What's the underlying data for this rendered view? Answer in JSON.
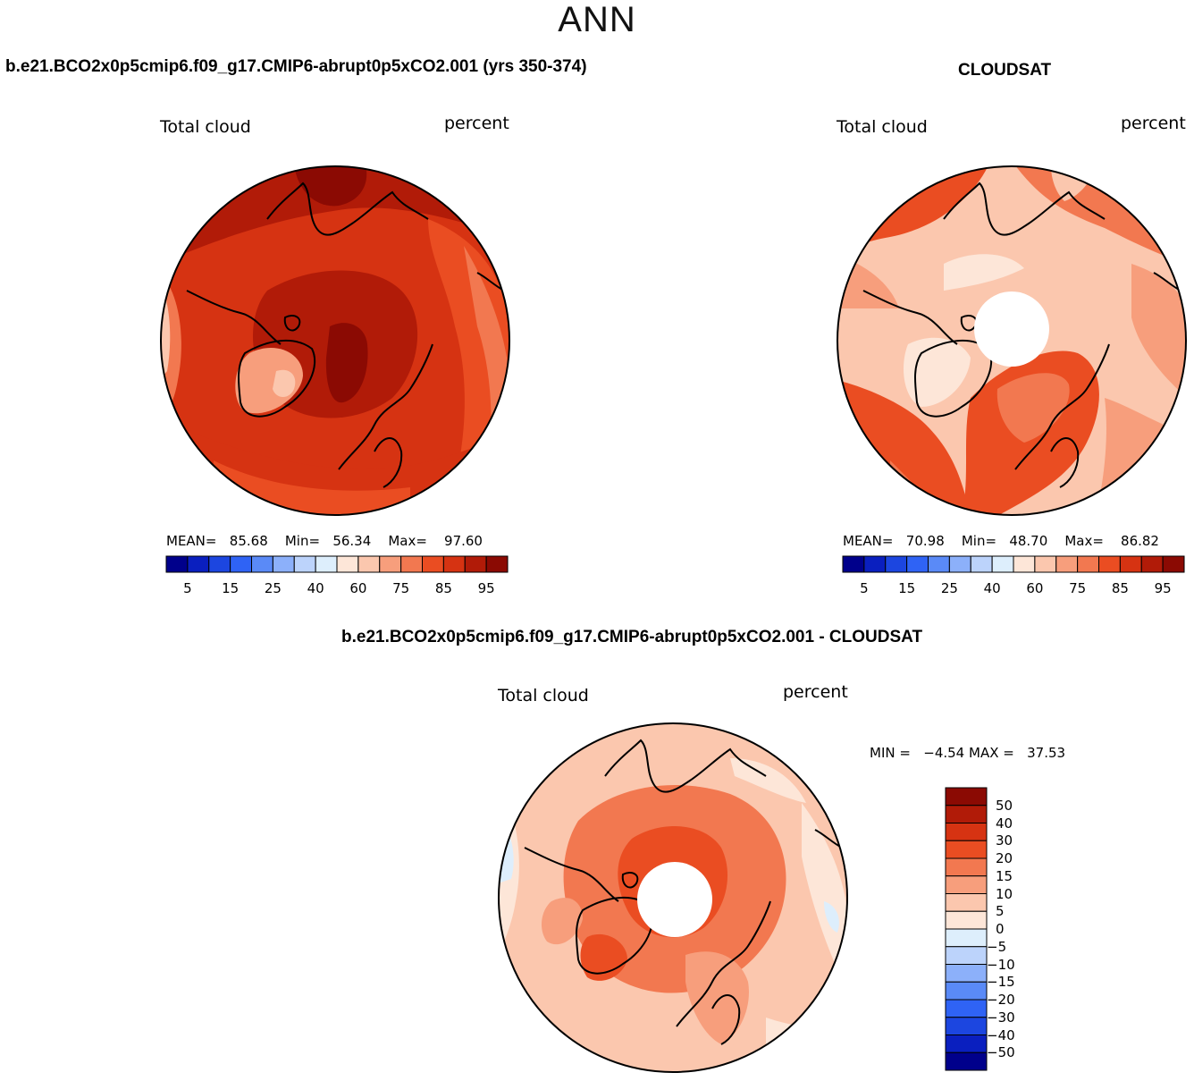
{
  "season": "ANN",
  "panels": {
    "model": {
      "title": "b.e21.BCO2x0p5cmip6.f09_g17.CMIP6-abrupt0p5xCO2.001 (yrs 350-374)",
      "variable": "Total cloud",
      "units": "percent",
      "stats": {
        "mean_label": "MEAN=",
        "mean": "85.68",
        "min_label": "Min=",
        "min": "56.34",
        "max_label": "Max=",
        "max": "97.60"
      },
      "colorbar_ticks": [
        "5",
        "15",
        "25",
        "40",
        "60",
        "75",
        "85",
        "95"
      ]
    },
    "obs": {
      "title": "CLOUDSAT",
      "variable": "Total cloud",
      "units": "percent",
      "stats": {
        "mean_label": "MEAN=",
        "mean": "70.98",
        "min_label": "Min=",
        "min": "48.70",
        "max_label": "Max=",
        "max": "86.82"
      },
      "colorbar_ticks": [
        "5",
        "15",
        "25",
        "40",
        "60",
        "75",
        "85",
        "95"
      ]
    },
    "diff": {
      "title": "b.e21.BCO2x0p5cmip6.f09_g17.CMIP6-abrupt0p5xCO2.001 - CLOUDSAT",
      "variable": "Total cloud",
      "units": "percent",
      "minmax": {
        "min_label": "MIN =",
        "min": "−4.54",
        "max_label": "MAX =",
        "max": "37.53"
      },
      "colorbar_ticks": [
        "50",
        "40",
        "30",
        "20",
        "15",
        "10",
        "5",
        "0",
        "−5",
        "−10",
        "−15",
        "−20",
        "−30",
        "−40",
        "−50"
      ]
    }
  },
  "colors": {
    "abs_scale": [
      "#00008b",
      "#0a1fbf",
      "#1c46e0",
      "#2f63f5",
      "#5a8af7",
      "#8cb0fa",
      "#bcd3fb",
      "#ddeefc",
      "#fde6d8",
      "#fbc7ae",
      "#f79e7c",
      "#f27850",
      "#ea4d22",
      "#d63312",
      "#b11b08",
      "#8b0a03"
    ],
    "diff_scale": [
      "#8b0a03",
      "#b11b08",
      "#d63312",
      "#ea4d22",
      "#f27850",
      "#f79e7c",
      "#fbc7ae",
      "#fde6d8",
      "#ddeefc",
      "#bcd3fb",
      "#8cb0fa",
      "#5a8af7",
      "#2f63f5",
      "#1c46e0",
      "#0a1fbf",
      "#00008b"
    ]
  }
}
